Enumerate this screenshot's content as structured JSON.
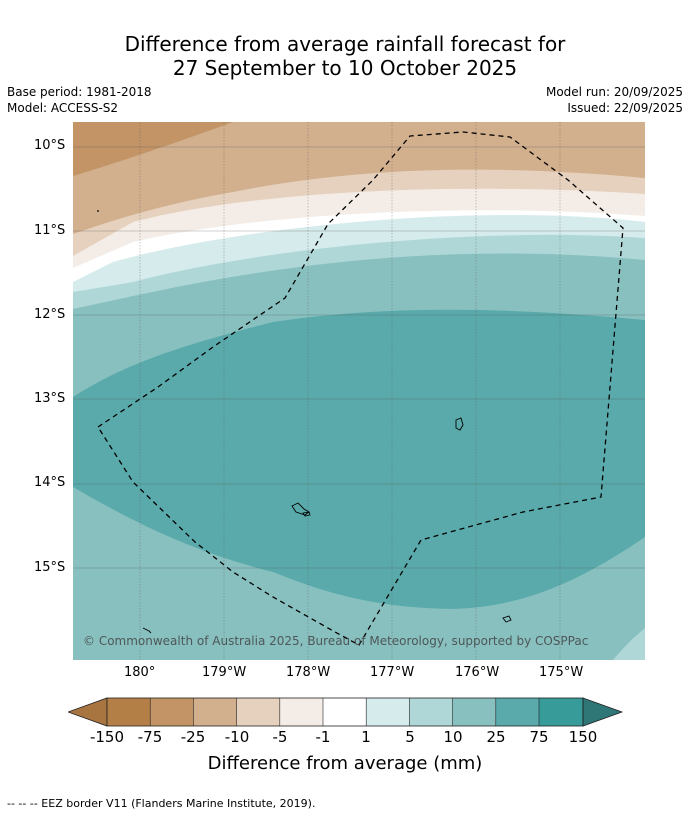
{
  "title": {
    "line1": "Difference from average rainfall forecast for",
    "line2": "27 September to 10 October 2025"
  },
  "meta": {
    "base_period": "Base period: 1981-2018",
    "model": "Model: ACCESS-S2",
    "model_run": "Model run: 20/09/2025",
    "issued": "Issued: 22/09/2025"
  },
  "map": {
    "lat_labels": [
      "10°S",
      "11°S",
      "12°S",
      "13°S",
      "14°S",
      "15°S"
    ],
    "lon_labels": [
      "180°",
      "179°W",
      "178°W",
      "177°W",
      "176°W",
      "175°W"
    ],
    "copyright": "© Commonwealth of Australia 2025, Bureau of Meteorology, supported by COSPPac",
    "colors": {
      "deep_brown": "#c29466",
      "brown": "#d2b08e",
      "light_brown": "#e5d1be",
      "lightest_brown": "#f4ede7",
      "neutral": "#ffffff",
      "lightest_teal": "#d6ebeb",
      "light_teal": "#b0d7d7",
      "teal": "#88c0c0",
      "mid_teal": "#5aaaab"
    }
  },
  "colorbar": {
    "labels": [
      "-150",
      "-75",
      "-25",
      "-10",
      "-5",
      "-1",
      "1",
      "5",
      "10",
      "25",
      "75",
      "150"
    ],
    "colors": [
      "#a8743f",
      "#b47f47",
      "#c29466",
      "#d2b08e",
      "#e5d1be",
      "#f4ede7",
      "#ffffff",
      "#d6ebeb",
      "#b0d7d7",
      "#88c0c0",
      "#5aaaab",
      "#379b9a",
      "#2f7676"
    ],
    "label": "Difference from average (mm)"
  },
  "footer": "--  --  -- EEZ border V11 (Flanders Marine Institute, 2019)."
}
